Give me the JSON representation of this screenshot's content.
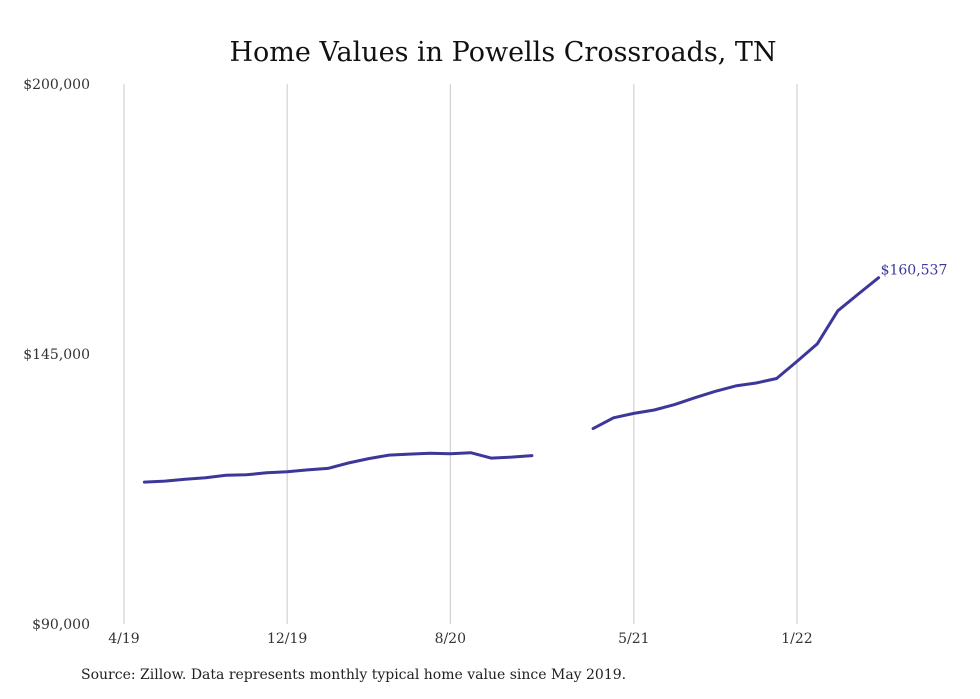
{
  "chart_data": {
    "type": "line",
    "title": "Home Values in Powells Crossroads, TN",
    "xlabel": "",
    "ylabel": "",
    "ylim": [
      90000,
      200000
    ],
    "yticks": [
      {
        "value": 90000,
        "label": "$90,000"
      },
      {
        "value": 145000,
        "label": "$145,000"
      },
      {
        "value": 200000,
        "label": "$200,000"
      }
    ],
    "xticks": [
      {
        "month": "2019-04",
        "label": "4/19"
      },
      {
        "month": "2019-12",
        "label": "12/19"
      },
      {
        "month": "2020-08",
        "label": "8/20"
      },
      {
        "month": "2021-05",
        "label": "5/21"
      },
      {
        "month": "2022-01",
        "label": "1/22"
      }
    ],
    "xrange": [
      "2019-04",
      "2022-01"
    ],
    "grid": "vertical",
    "series": [
      {
        "color": "#3d3799",
        "segments": [
          [
            {
              "x": "2019-05",
              "y": 118900
            },
            {
              "x": "2019-06",
              "y": 119100
            },
            {
              "x": "2019-07",
              "y": 119500
            },
            {
              "x": "2019-08",
              "y": 119800
            },
            {
              "x": "2019-09",
              "y": 120300
            },
            {
              "x": "2019-10",
              "y": 120400
            },
            {
              "x": "2019-11",
              "y": 120800
            },
            {
              "x": "2019-12",
              "y": 121000
            },
            {
              "x": "2020-01",
              "y": 121400
            },
            {
              "x": "2020-02",
              "y": 121700
            },
            {
              "x": "2020-03",
              "y": 122800
            },
            {
              "x": "2020-04",
              "y": 123700
            },
            {
              "x": "2020-05",
              "y": 124400
            },
            {
              "x": "2020-06",
              "y": 124600
            },
            {
              "x": "2020-07",
              "y": 124800
            },
            {
              "x": "2020-08",
              "y": 124700
            },
            {
              "x": "2020-09",
              "y": 124900
            },
            {
              "x": "2020-10",
              "y": 123800
            },
            {
              "x": "2020-11",
              "y": 124000
            },
            {
              "x": "2020-12",
              "y": 124300
            }
          ],
          [
            {
              "x": "2021-03",
              "y": 129800
            },
            {
              "x": "2021-04",
              "y": 132000
            },
            {
              "x": "2021-05",
              "y": 132900
            },
            {
              "x": "2021-06",
              "y": 133600
            },
            {
              "x": "2021-07",
              "y": 134700
            },
            {
              "x": "2021-08",
              "y": 136100
            },
            {
              "x": "2021-09",
              "y": 137400
            },
            {
              "x": "2021-10",
              "y": 138500
            },
            {
              "x": "2021-11",
              "y": 139100
            },
            {
              "x": "2021-12",
              "y": 140000
            },
            {
              "x": "2022-01",
              "y": 143500
            },
            {
              "x": "2022-02",
              "y": 147100
            },
            {
              "x": "2022-03",
              "y": 153800
            },
            {
              "x": "2022-04",
              "y": 157200
            },
            {
              "x": "2022-05",
              "y": 160537
            }
          ]
        ]
      }
    ],
    "end_label": "$160,537",
    "source": "Source: Zillow. Data represents monthly typical home value since May 2019."
  }
}
